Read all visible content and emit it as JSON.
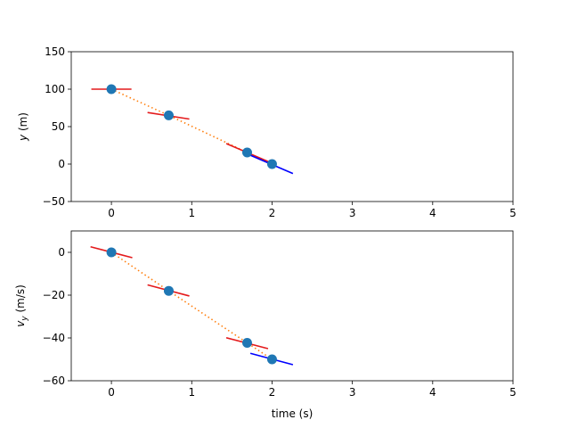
{
  "colors": {
    "point": "#1f77b4",
    "path": "#ff7f0e",
    "tangent": "#e41a1c",
    "final_tangent": "#0000ff",
    "axis": "#000000"
  },
  "chart_data": [
    {
      "type": "scatter",
      "xlabel": "",
      "ylabel_main": "y",
      "ylabel_unit": " (m)",
      "xlim": [
        -0.5,
        5
      ],
      "ylim": [
        -50,
        150
      ],
      "xticks": [
        0,
        1,
        2,
        3,
        4,
        5
      ],
      "yticks": [
        -50,
        0,
        50,
        100,
        150
      ],
      "grid": false,
      "points": [
        {
          "x": 0,
          "y": 100
        },
        {
          "x": 0.714,
          "y": 65
        },
        {
          "x": 1.69,
          "y": 15.5
        },
        {
          "x": 2.0,
          "y": 0
        }
      ],
      "tangents": [
        {
          "x1": -0.25,
          "y1": 100,
          "x2": 0.25,
          "y2": 100,
          "kind": "tangent"
        },
        {
          "x1": 0.45,
          "y1": 68.8,
          "x2": 0.97,
          "y2": 60.1,
          "kind": "tangent"
        },
        {
          "x1": 1.43,
          "y1": 27.4,
          "x2": 1.95,
          "y2": 3.5,
          "kind": "tangent"
        },
        {
          "x1": 1.73,
          "y1": 11.7,
          "x2": 2.26,
          "y2": -12.6,
          "kind": "final"
        }
      ]
    },
    {
      "type": "scatter",
      "xlabel": "time (s)",
      "ylabel_main": "v",
      "ylabel_sub": "y",
      "ylabel_unit": " (m/s)",
      "xlim": [
        -0.5,
        5
      ],
      "ylim": [
        -60,
        10
      ],
      "xticks": [
        0,
        1,
        2,
        3,
        4,
        5
      ],
      "yticks": [
        -60,
        -40,
        -20,
        0
      ],
      "grid": false,
      "points": [
        {
          "x": 0,
          "y": 0
        },
        {
          "x": 0.714,
          "y": -18
        },
        {
          "x": 1.69,
          "y": -42.3
        },
        {
          "x": 2.0,
          "y": -50
        }
      ],
      "tangents": [
        {
          "x1": -0.26,
          "y1": 2.6,
          "x2": 0.26,
          "y2": -2.5,
          "kind": "tangent"
        },
        {
          "x1": 0.45,
          "y1": -15.2,
          "x2": 0.97,
          "y2": -20.4,
          "kind": "tangent"
        },
        {
          "x1": 1.43,
          "y1": -39.9,
          "x2": 1.95,
          "y2": -45.0,
          "kind": "tangent"
        },
        {
          "x1": 1.73,
          "y1": -47.2,
          "x2": 2.26,
          "y2": -52.5,
          "kind": "final"
        }
      ]
    }
  ]
}
